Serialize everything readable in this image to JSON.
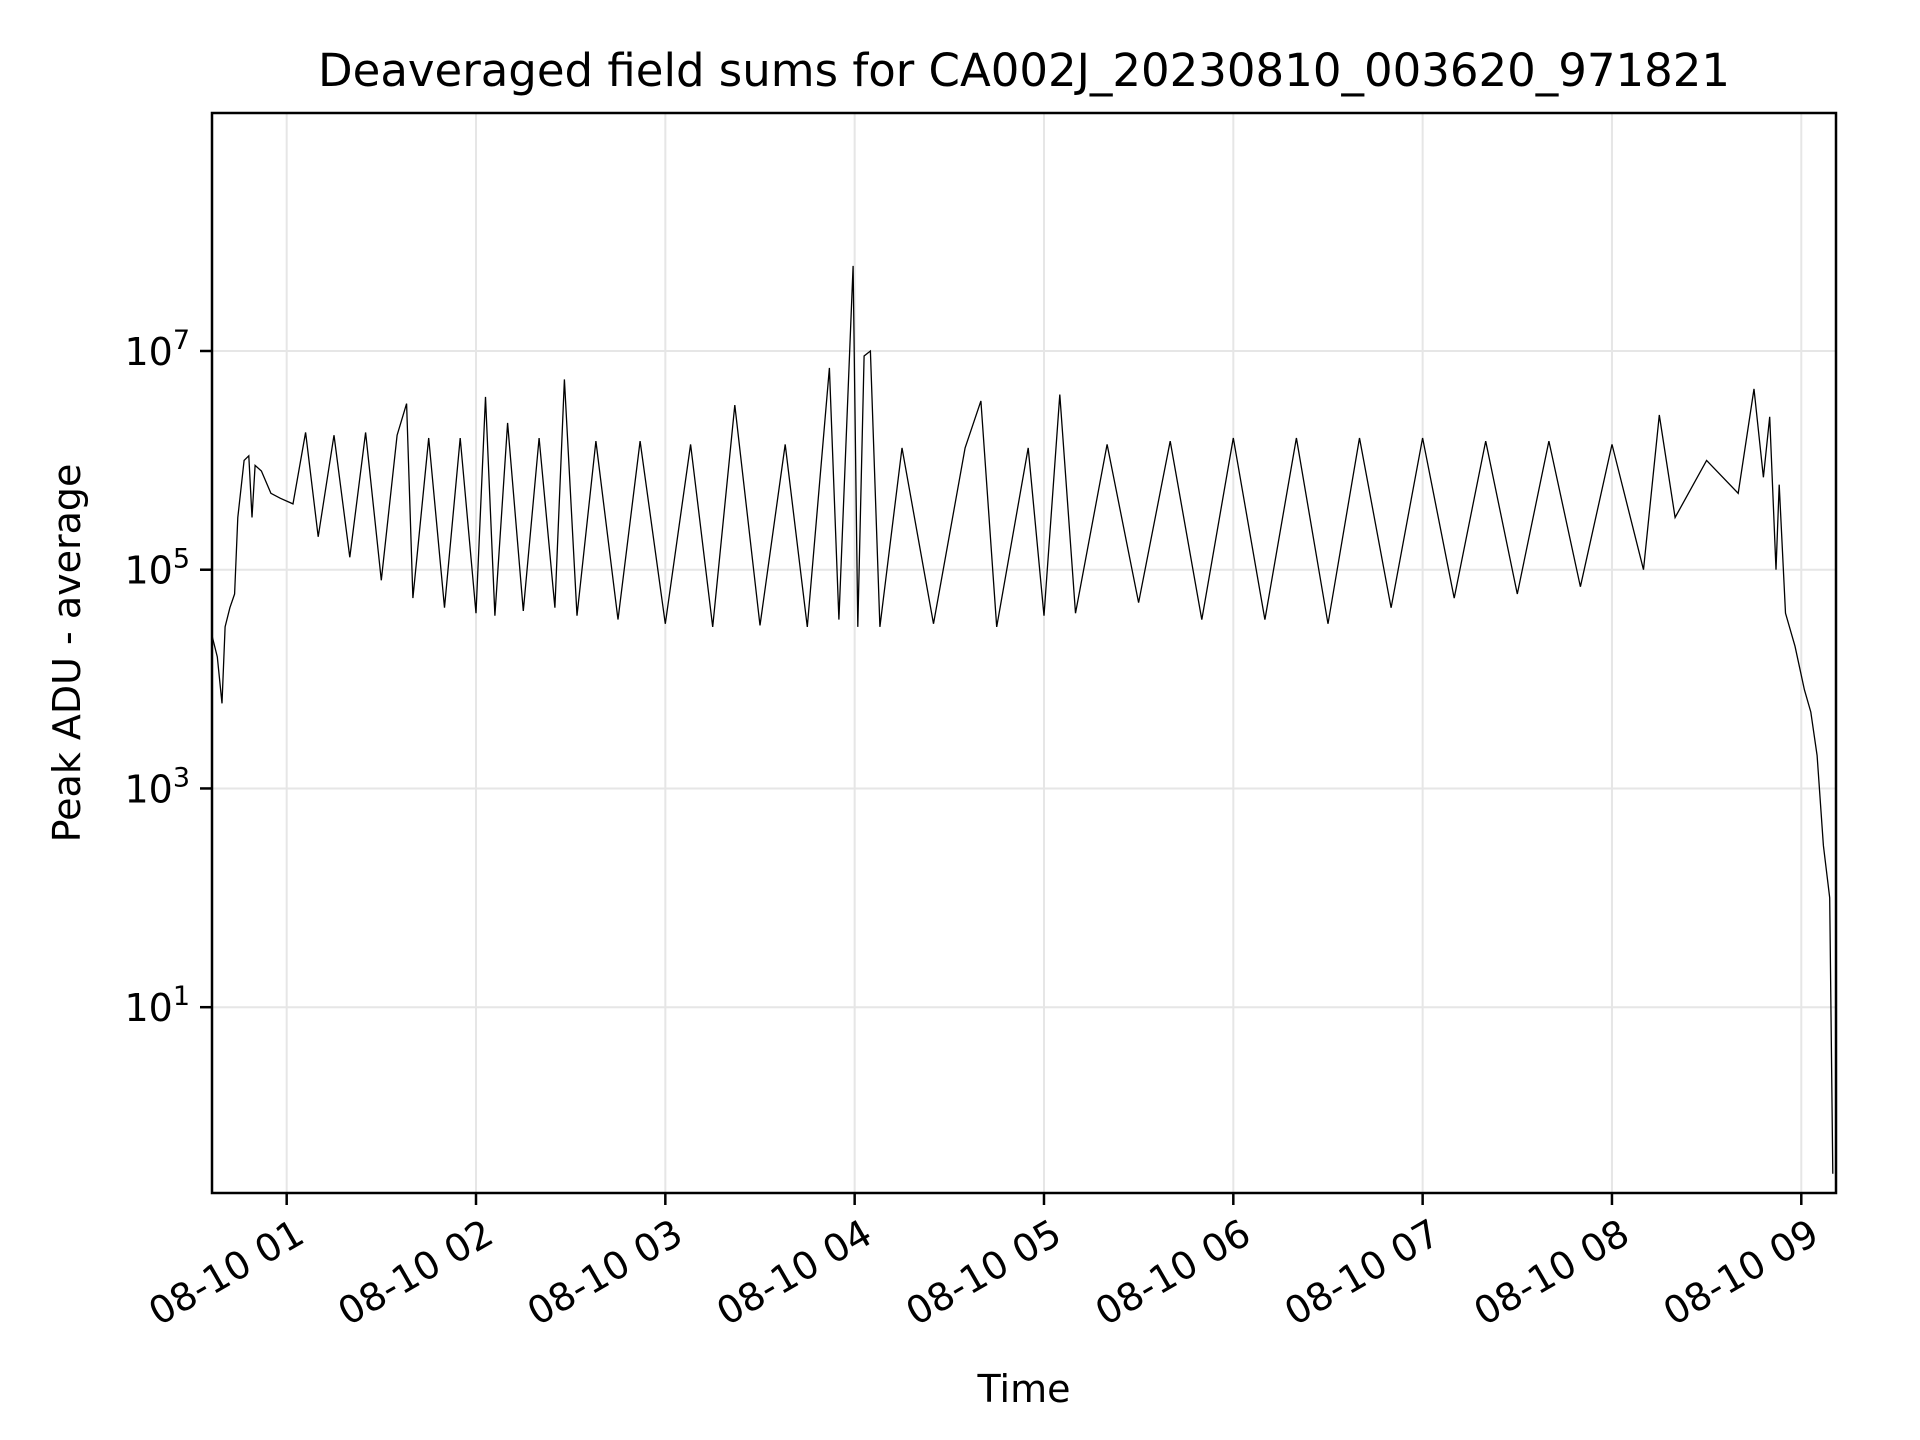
{
  "chart_data": {
    "type": "line",
    "title": "Deaveraged field sums for CA002J_20230810_003620_971821",
    "xlabel": "Time",
    "ylabel": "Peak ADU - average",
    "yscale": "log",
    "grid": true,
    "line_color": "#000000",
    "grid_color": "#e6e6e6",
    "xlim": [
      "2023-08-10 00:36:20",
      "2023-08-10 09:11:00"
    ],
    "ylim": [
      0.2,
      1500000000
    ],
    "x_ticks": [
      {
        "value": "2023-08-10 01:00",
        "label": "08-10 01"
      },
      {
        "value": "2023-08-10 02:00",
        "label": "08-10 02"
      },
      {
        "value": "2023-08-10 03:00",
        "label": "08-10 03"
      },
      {
        "value": "2023-08-10 04:00",
        "label": "08-10 04"
      },
      {
        "value": "2023-08-10 05:00",
        "label": "08-10 05"
      },
      {
        "value": "2023-08-10 06:00",
        "label": "08-10 06"
      },
      {
        "value": "2023-08-10 07:00",
        "label": "08-10 07"
      },
      {
        "value": "2023-08-10 08:00",
        "label": "08-10 08"
      },
      {
        "value": "2023-08-10 09:00",
        "label": "08-10 09"
      }
    ],
    "y_ticks": [
      {
        "value": 10,
        "base": "10",
        "exp": "1"
      },
      {
        "value": 1000,
        "base": "10",
        "exp": "3"
      },
      {
        "value": 100000,
        "base": "10",
        "exp": "5"
      },
      {
        "value": 10000000,
        "base": "10",
        "exp": "7"
      }
    ],
    "series": [
      {
        "points": [
          [
            "2023-08-10 00:36:20",
            25000
          ],
          [
            "2023-08-10 00:38:00",
            16000
          ],
          [
            "2023-08-10 00:39:30",
            6000
          ],
          [
            "2023-08-10 00:40:30",
            30000
          ],
          [
            "2023-08-10 00:42:00",
            45000
          ],
          [
            "2023-08-10 00:43:30",
            60000
          ],
          [
            "2023-08-10 00:44:30",
            300000
          ],
          [
            "2023-08-10 00:46:30",
            1000000
          ],
          [
            "2023-08-10 00:48:00",
            1100000
          ],
          [
            "2023-08-10 00:49:00",
            300000
          ],
          [
            "2023-08-10 00:50:00",
            900000
          ],
          [
            "2023-08-10 00:52:00",
            800000
          ],
          [
            "2023-08-10 00:55:00",
            500000
          ],
          [
            "2023-08-10 00:58:00",
            450000
          ],
          [
            "2023-08-10 01:02:00",
            400000
          ],
          [
            "2023-08-10 01:06:00",
            1800000
          ],
          [
            "2023-08-10 01:10:00",
            200000
          ],
          [
            "2023-08-10 01:15:00",
            1700000
          ],
          [
            "2023-08-10 01:20:00",
            130000
          ],
          [
            "2023-08-10 01:25:00",
            1800000
          ],
          [
            "2023-08-10 01:30:00",
            80000
          ],
          [
            "2023-08-10 01:35:00",
            1700000
          ],
          [
            "2023-08-10 01:38:00",
            3300000
          ],
          [
            "2023-08-10 01:40:00",
            55000
          ],
          [
            "2023-08-10 01:45:00",
            1600000
          ],
          [
            "2023-08-10 01:50:00",
            45000
          ],
          [
            "2023-08-10 01:55:00",
            1600000
          ],
          [
            "2023-08-10 02:00:00",
            40000
          ],
          [
            "2023-08-10 02:03:00",
            3800000
          ],
          [
            "2023-08-10 02:06:00",
            38000
          ],
          [
            "2023-08-10 02:10:00",
            2200000
          ],
          [
            "2023-08-10 02:15:00",
            42000
          ],
          [
            "2023-08-10 02:20:00",
            1600000
          ],
          [
            "2023-08-10 02:25:00",
            45000
          ],
          [
            "2023-08-10 02:28:00",
            5500000
          ],
          [
            "2023-08-10 02:32:00",
            38000
          ],
          [
            "2023-08-10 02:38:00",
            1500000
          ],
          [
            "2023-08-10 02:45:00",
            35000
          ],
          [
            "2023-08-10 02:52:00",
            1500000
          ],
          [
            "2023-08-10 03:00:00",
            32000
          ],
          [
            "2023-08-10 03:08:00",
            1400000
          ],
          [
            "2023-08-10 03:15:00",
            30000
          ],
          [
            "2023-08-10 03:22:00",
            3200000
          ],
          [
            "2023-08-10 03:30:00",
            31000
          ],
          [
            "2023-08-10 03:38:00",
            1400000
          ],
          [
            "2023-08-10 03:45:00",
            30000
          ],
          [
            "2023-08-10 03:52:00",
            7000000
          ],
          [
            "2023-08-10 03:55:00",
            35000
          ],
          [
            "2023-08-10 03:59:30",
            60000000
          ],
          [
            "2023-08-10 04:01:00",
            30000
          ],
          [
            "2023-08-10 04:03:00",
            9000000
          ],
          [
            "2023-08-10 04:05:00",
            10000000
          ],
          [
            "2023-08-10 04:08:00",
            30000
          ],
          [
            "2023-08-10 04:15:00",
            1300000
          ],
          [
            "2023-08-10 04:25:00",
            32000
          ],
          [
            "2023-08-10 04:35:00",
            1300000
          ],
          [
            "2023-08-10 04:40:00",
            3500000
          ],
          [
            "2023-08-10 04:45:00",
            30000
          ],
          [
            "2023-08-10 04:55:00",
            1300000
          ],
          [
            "2023-08-10 05:00:00",
            38000
          ],
          [
            "2023-08-10 05:05:00",
            4000000
          ],
          [
            "2023-08-10 05:10:00",
            40000
          ],
          [
            "2023-08-10 05:20:00",
            1400000
          ],
          [
            "2023-08-10 05:30:00",
            50000
          ],
          [
            "2023-08-10 05:40:00",
            1500000
          ],
          [
            "2023-08-10 05:50:00",
            35000
          ],
          [
            "2023-08-10 06:00:00",
            1600000
          ],
          [
            "2023-08-10 06:10:00",
            35000
          ],
          [
            "2023-08-10 06:20:00",
            1600000
          ],
          [
            "2023-08-10 06:30:00",
            32000
          ],
          [
            "2023-08-10 06:40:00",
            1600000
          ],
          [
            "2023-08-10 06:50:00",
            45000
          ],
          [
            "2023-08-10 07:00:00",
            1600000
          ],
          [
            "2023-08-10 07:10:00",
            55000
          ],
          [
            "2023-08-10 07:20:00",
            1500000
          ],
          [
            "2023-08-10 07:30:00",
            60000
          ],
          [
            "2023-08-10 07:40:00",
            1500000
          ],
          [
            "2023-08-10 07:50:00",
            70000
          ],
          [
            "2023-08-10 08:00:00",
            1400000
          ],
          [
            "2023-08-10 08:10:00",
            100000
          ],
          [
            "2023-08-10 08:15:00",
            2600000
          ],
          [
            "2023-08-10 08:20:00",
            300000
          ],
          [
            "2023-08-10 08:30:00",
            1000000
          ],
          [
            "2023-08-10 08:40:00",
            500000
          ],
          [
            "2023-08-10 08:45:00",
            4500000
          ],
          [
            "2023-08-10 08:48:00",
            700000
          ],
          [
            "2023-08-10 08:50:00",
            2500000
          ],
          [
            "2023-08-10 08:52:00",
            100000
          ],
          [
            "2023-08-10 08:53:00",
            600000
          ],
          [
            "2023-08-10 08:55:00",
            40000
          ],
          [
            "2023-08-10 08:58:00",
            20000
          ],
          [
            "2023-08-10 09:01:00",
            8000
          ],
          [
            "2023-08-10 09:03:00",
            5000
          ],
          [
            "2023-08-10 09:05:00",
            2000
          ],
          [
            "2023-08-10 09:07:00",
            300
          ],
          [
            "2023-08-10 09:09:00",
            100
          ],
          [
            "2023-08-10 09:10:00",
            0.3
          ]
        ]
      }
    ]
  }
}
